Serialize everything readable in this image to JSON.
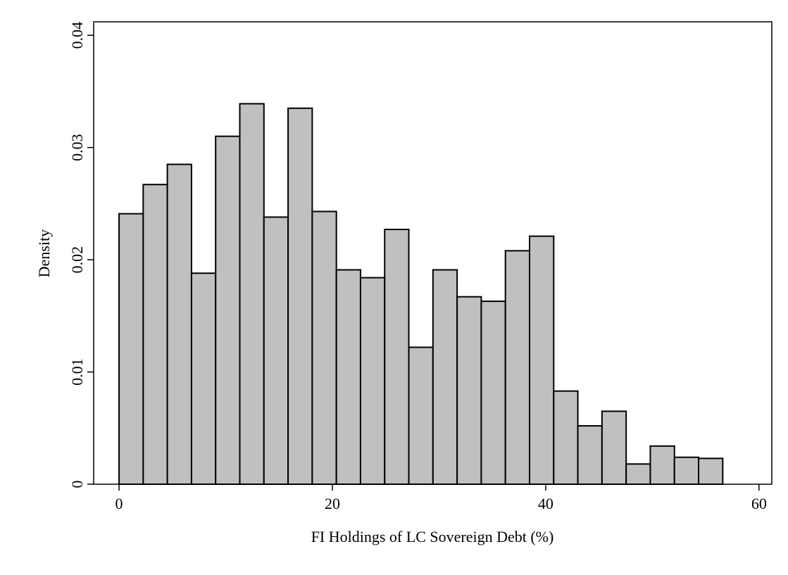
{
  "chart_data": {
    "type": "histogram",
    "x_label": "FI Holdings of LC Sovereign Debt (%)",
    "y_label": "Density",
    "bins": [
      0,
      2.264,
      4.528,
      6.792,
      9.056,
      11.32,
      13.584,
      15.848,
      18.112,
      20.376,
      22.64,
      24.904,
      27.168,
      29.432,
      31.696,
      33.96,
      36.224,
      38.488,
      40.752,
      43.016,
      45.28,
      47.544,
      49.808,
      52.072,
      54.336,
      56.6
    ],
    "values": [
      0.0241,
      0.0267,
      0.0285,
      0.0188,
      0.031,
      0.0339,
      0.0238,
      0.0335,
      0.0243,
      0.0191,
      0.0184,
      0.0227,
      0.0122,
      0.0191,
      0.0167,
      0.0163,
      0.0208,
      0.0221,
      0.0083,
      0.0052,
      0.0065,
      0.0018,
      0.0034,
      0.0024,
      0.0023
    ],
    "color": "#c0c0c0",
    "xlim": [
      -2.38,
      61.2
    ],
    "xticks": [
      0,
      20,
      40,
      60
    ],
    "ylim": [
      0,
      0.0412
    ],
    "yticks": [
      0,
      0.01,
      0.02,
      0.03,
      0.04
    ]
  }
}
